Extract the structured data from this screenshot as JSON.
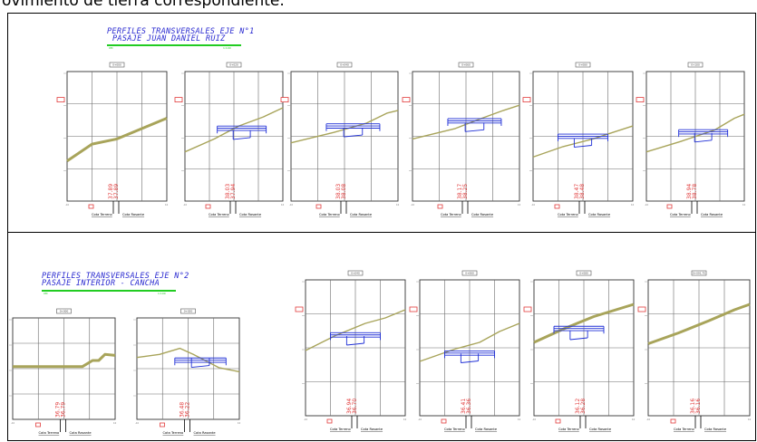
{
  "caption": "ovimiento de tierra correspondiente.",
  "groups": [
    {
      "title_line1": "PERFILES TRANSVERSALES EJE N°1",
      "title_line2": "PASAJE JUAN DANIEL RUIZ",
      "scale_left": "0M",
      "scale_right": "1:100"
    },
    {
      "title_line1": "PERFILES TRANSVERSALES EJE N°2",
      "title_line2": "PASAJE INTERIOR - CANCHA",
      "scale_left": "0M",
      "scale_right": "1:100"
    }
  ],
  "legend": {
    "terrain_label": "Cota Terreno",
    "subgrade_label": "Cota Rasante"
  },
  "colors": {
    "terrain": "#a8a45a",
    "structure": "#1f2fd6",
    "label": "#e23a3a",
    "title": "#2a2ad0",
    "scale": "#22cc22",
    "grid": "#6a6a6a"
  },
  "profiles": [
    {
      "id": "p1",
      "group": 0,
      "chainage": "0+000",
      "cota_terreno": "37.89",
      "cota_rasante": "37.89",
      "has_structure": false
    },
    {
      "id": "p2",
      "group": 0,
      "chainage": "0+020",
      "cota_terreno": "38.03",
      "cota_rasante": "37.94",
      "has_structure": true
    },
    {
      "id": "p3",
      "group": 0,
      "chainage": "0+040",
      "cota_terreno": "38.03",
      "cota_rasante": "38.08",
      "has_structure": true
    },
    {
      "id": "p4",
      "group": 0,
      "chainage": "0+060",
      "cota_terreno": "38.17",
      "cota_rasante": "38.25",
      "has_structure": true
    },
    {
      "id": "p5",
      "group": 0,
      "chainage": "0+080",
      "cota_terreno": "38.47",
      "cota_rasante": "38.48",
      "has_structure": true
    },
    {
      "id": "p6",
      "group": 0,
      "chainage": "0+100",
      "cota_terreno": "38.94",
      "cota_rasante": "38.78",
      "has_structure": true
    },
    {
      "id": "p7",
      "group": 1,
      "chainage": "0+000",
      "cota_terreno": "36.79",
      "cota_rasante": "36.79",
      "has_structure": false
    },
    {
      "id": "p8",
      "group": 1,
      "chainage": "0+020",
      "cota_terreno": "36.48",
      "cota_rasante": "36.22",
      "has_structure": true
    },
    {
      "id": "p9",
      "group": 1,
      "chainage": "0+040",
      "cota_terreno": "36.94",
      "cota_rasante": "36.70",
      "has_structure": true
    },
    {
      "id": "p10",
      "group": 1,
      "chainage": "0+060",
      "cota_terreno": "36.41",
      "cota_rasante": "36.36",
      "has_structure": true
    },
    {
      "id": "p11",
      "group": 1,
      "chainage": "0+080",
      "cota_terreno": "36.12",
      "cota_rasante": "36.28",
      "has_structure": true
    },
    {
      "id": "p12",
      "group": 1,
      "chainage": "0+091.75",
      "cota_terreno": "36.16",
      "cota_rasante": "36.16",
      "has_structure": false
    }
  ]
}
